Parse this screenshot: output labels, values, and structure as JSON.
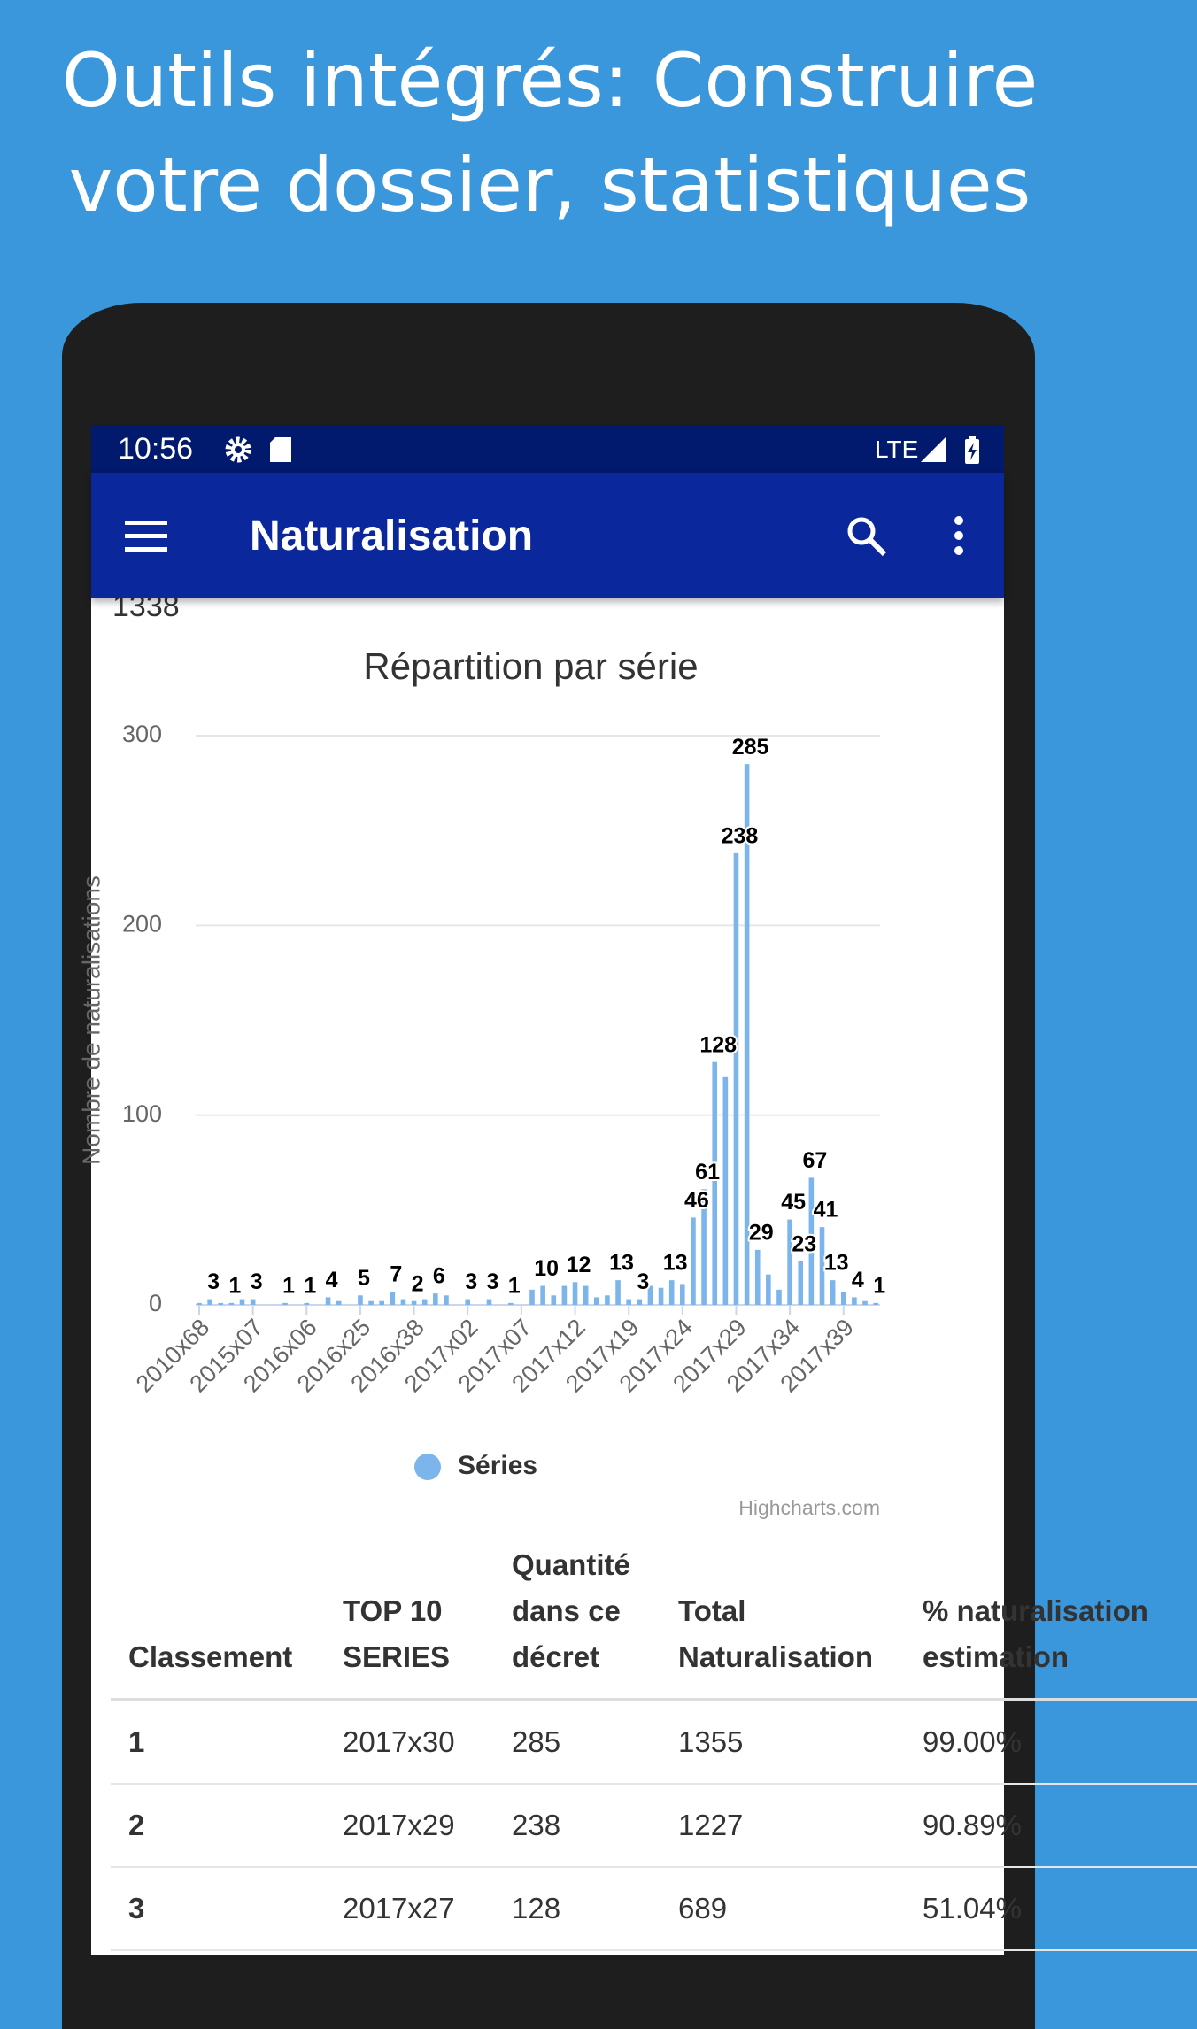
{
  "header": {
    "title_lines": [
      "Outils intégrés: Construire",
      "votre dossier, statistiques"
    ]
  },
  "status_bar": {
    "time": "10:56",
    "network": "LTE"
  },
  "app_bar": {
    "title": "Naturalisation"
  },
  "content": {
    "partial_total": "1338"
  },
  "chart_data": {
    "type": "bar",
    "title": "Répartition par série",
    "y_label": "Nombre de naturalisations",
    "categories": [
      "2010x68",
      null,
      null,
      null,
      null,
      "2015x07",
      null,
      null,
      null,
      null,
      "2016x06",
      null,
      null,
      null,
      null,
      "2016x25",
      null,
      null,
      null,
      null,
      "2016x38",
      null,
      null,
      null,
      null,
      "2017x02",
      null,
      null,
      null,
      null,
      "2017x07",
      null,
      null,
      null,
      null,
      "2017x12",
      null,
      null,
      null,
      null,
      "2017x19",
      null,
      null,
      null,
      null,
      "2017x24",
      null,
      null,
      null,
      null,
      "2017x29",
      null,
      null,
      null,
      null,
      "2017x34",
      null,
      null,
      null,
      null,
      "2017x39",
      null,
      null,
      null
    ],
    "series": [
      {
        "name": "Séries",
        "color": "#7cb5ec",
        "values": [
          1,
          3,
          1,
          1,
          3,
          3,
          0,
          0,
          1,
          0,
          1,
          0,
          4,
          2,
          0,
          5,
          2,
          2,
          7,
          3,
          2,
          3,
          6,
          5,
          0,
          3,
          0,
          3,
          0,
          1,
          0,
          8,
          10,
          5,
          10,
          12,
          10,
          4,
          5,
          13,
          3,
          3,
          10,
          9,
          13,
          11,
          46,
          61,
          128,
          120,
          238,
          285,
          29,
          16,
          8,
          45,
          23,
          67,
          41,
          13,
          7,
          4,
          2,
          1
        ],
        "value_labels": [
          null,
          "3",
          null,
          "1",
          null,
          "3",
          null,
          null,
          "1",
          null,
          "1",
          null,
          "4",
          null,
          null,
          "5",
          null,
          null,
          "7",
          null,
          "2",
          null,
          "6",
          null,
          null,
          "3",
          null,
          "3",
          null,
          "1",
          null,
          null,
          "10",
          null,
          null,
          "12",
          null,
          null,
          null,
          "13",
          null,
          "3",
          null,
          null,
          "13",
          null,
          "46",
          "61",
          "128",
          null,
          "238",
          "285",
          "29",
          null,
          null,
          "45",
          "23",
          "67",
          "41",
          "13",
          null,
          "4",
          null,
          "1"
        ]
      }
    ],
    "ylim": [
      0,
      300
    ],
    "yticks": [
      0,
      100,
      200,
      300
    ],
    "grid": true,
    "legend": "bottom",
    "credit": "Highcharts.com"
  },
  "table": {
    "columns": [
      "Classement",
      "TOP 10 SERIES",
      "Quantité dans ce décret",
      "Total Naturalisation",
      "% naturalisation estimation"
    ],
    "rows": [
      [
        "1",
        "2017x30",
        "285",
        "1355",
        "99.00%"
      ],
      [
        "2",
        "2017x29",
        "238",
        "1227",
        "90.89%"
      ],
      [
        "3",
        "2017x27",
        "128",
        "689",
        "51.04%"
      ]
    ]
  }
}
